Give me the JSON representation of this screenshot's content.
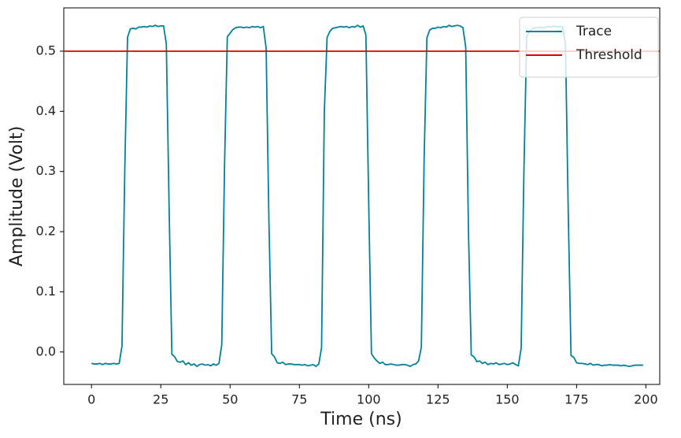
{
  "chart_data": {
    "type": "line",
    "xlabel": "Time (ns)",
    "ylabel": "Amplitude (Volt)",
    "x": [
      0,
      1,
      2,
      3,
      4,
      5,
      6,
      7,
      8,
      9,
      10,
      11,
      12,
      13,
      14,
      15,
      16,
      17,
      18,
      19,
      20,
      21,
      22,
      23,
      24,
      25,
      26,
      27,
      28,
      29,
      30,
      31,
      32,
      33,
      34,
      35,
      36,
      37,
      38,
      39,
      40,
      41,
      42,
      43,
      44,
      45,
      46,
      47,
      48,
      49,
      50,
      51,
      52,
      53,
      54,
      55,
      56,
      57,
      58,
      59,
      60,
      61,
      62,
      63,
      64,
      65,
      66,
      67,
      68,
      69,
      70,
      71,
      72,
      73,
      74,
      75,
      76,
      77,
      78,
      79,
      80,
      81,
      82,
      83,
      84,
      85,
      86,
      87,
      88,
      89,
      90,
      91,
      92,
      93,
      94,
      95,
      96,
      97,
      98,
      99,
      100,
      101,
      102,
      103,
      104,
      105,
      106,
      107,
      108,
      109,
      110,
      111,
      112,
      113,
      114,
      115,
      116,
      117,
      118,
      119,
      120,
      121,
      122,
      123,
      124,
      125,
      126,
      127,
      128,
      129,
      130,
      131,
      132,
      133,
      134,
      135,
      136,
      137,
      138,
      139,
      140,
      141,
      142,
      143,
      144,
      145,
      146,
      147,
      148,
      149,
      150,
      151,
      152,
      153,
      154,
      155,
      156,
      157,
      158,
      159,
      160,
      161,
      162,
      163,
      164,
      165,
      166,
      167,
      168,
      169,
      170,
      171,
      172,
      173,
      174,
      175,
      176,
      177,
      178,
      179,
      180,
      181,
      182,
      183,
      184,
      185,
      186,
      187,
      188,
      189,
      190,
      191,
      192,
      193,
      194,
      195,
      196,
      197,
      198,
      199
    ],
    "series": [
      {
        "name": "Trace",
        "color": "#00829b",
        "values": [
          -0.019,
          -0.02,
          -0.02,
          -0.019,
          -0.021,
          -0.019,
          -0.02,
          -0.02,
          -0.019,
          -0.02,
          -0.019,
          0.01,
          0.3,
          0.523,
          0.537,
          0.538,
          0.537,
          0.54,
          0.54,
          0.541,
          0.54,
          0.542,
          0.541,
          0.543,
          0.541,
          0.542,
          0.542,
          0.512,
          0.24,
          -0.004,
          -0.008,
          -0.016,
          -0.017,
          -0.015,
          -0.021,
          -0.018,
          -0.022,
          -0.02,
          -0.024,
          -0.021,
          -0.02,
          -0.022,
          -0.021,
          -0.023,
          -0.02,
          -0.022,
          -0.019,
          0.012,
          0.31,
          0.524,
          0.53,
          0.536,
          0.539,
          0.54,
          0.54,
          0.539,
          0.54,
          0.539,
          0.541,
          0.54,
          0.541,
          0.539,
          0.541,
          0.505,
          0.22,
          -0.003,
          -0.008,
          -0.018,
          -0.019,
          -0.017,
          -0.021,
          -0.02,
          -0.02,
          -0.021,
          -0.021,
          -0.021,
          -0.022,
          -0.021,
          -0.023,
          -0.022,
          -0.021,
          -0.024,
          -0.02,
          0.007,
          0.4,
          0.523,
          0.533,
          0.538,
          0.539,
          0.54,
          0.541,
          0.54,
          0.541,
          0.539,
          0.541,
          0.54,
          0.543,
          0.54,
          0.542,
          0.527,
          0.25,
          -0.003,
          -0.01,
          -0.015,
          -0.019,
          -0.017,
          -0.021,
          -0.021,
          -0.02,
          -0.021,
          -0.022,
          -0.022,
          -0.021,
          -0.021,
          -0.022,
          -0.024,
          -0.021,
          -0.02,
          -0.015,
          0.008,
          0.32,
          0.522,
          0.535,
          0.538,
          0.538,
          0.54,
          0.539,
          0.541,
          0.54,
          0.543,
          0.541,
          0.542,
          0.543,
          0.542,
          0.539,
          0.507,
          0.2,
          -0.005,
          -0.008,
          -0.016,
          -0.015,
          -0.019,
          -0.017,
          -0.021,
          -0.019,
          -0.02,
          -0.018,
          -0.021,
          -0.02,
          -0.019,
          -0.021,
          -0.02,
          -0.018,
          -0.021,
          -0.023,
          0.006,
          0.3,
          0.524,
          0.533,
          0.537,
          0.539,
          0.539,
          0.54,
          0.539,
          0.54,
          0.541,
          0.54,
          0.542,
          0.54,
          0.541,
          0.54,
          0.51,
          0.23,
          -0.006,
          -0.009,
          -0.018,
          -0.019,
          -0.019,
          -0.02,
          -0.021,
          -0.019,
          -0.022,
          -0.021,
          -0.021,
          -0.023,
          -0.022,
          -0.022,
          -0.021,
          -0.022,
          -0.022,
          -0.022,
          -0.023,
          -0.022,
          -0.023,
          -0.024,
          -0.023,
          -0.022,
          -0.022,
          -0.022,
          -0.022
        ]
      }
    ],
    "threshold": {
      "name": "Threshold",
      "color": "#e00000",
      "value": 0.5
    },
    "xlim": [
      -10,
      205
    ],
    "ylim": [
      -0.054,
      0.572
    ],
    "xticks": [
      0,
      25,
      50,
      75,
      100,
      125,
      150,
      175,
      200
    ],
    "yticks": [
      {
        "value": 0,
        "label": "0.0"
      },
      0.1,
      0.2,
      0.3,
      0.4,
      0.5
    ],
    "legend": "upper right",
    "grid": false
  }
}
